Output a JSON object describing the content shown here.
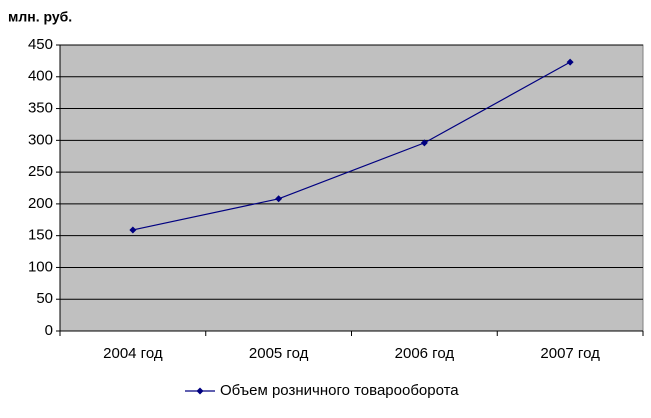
{
  "chart_data": {
    "type": "line",
    "y_label": "млн. руб.",
    "categories": [
      "2004 год",
      "2005 год",
      "2006 год",
      "2007 год"
    ],
    "series": [
      {
        "name": "Объем розничного товарооборота",
        "color": "#000080",
        "values": [
          159,
          208,
          296,
          423
        ]
      }
    ],
    "ylim": [
      0,
      450
    ],
    "yticks": [
      0,
      50,
      100,
      150,
      200,
      250,
      300,
      350,
      400,
      450
    ],
    "grid": true,
    "legend": "bottom",
    "plot_background": "#c0c0c0"
  }
}
